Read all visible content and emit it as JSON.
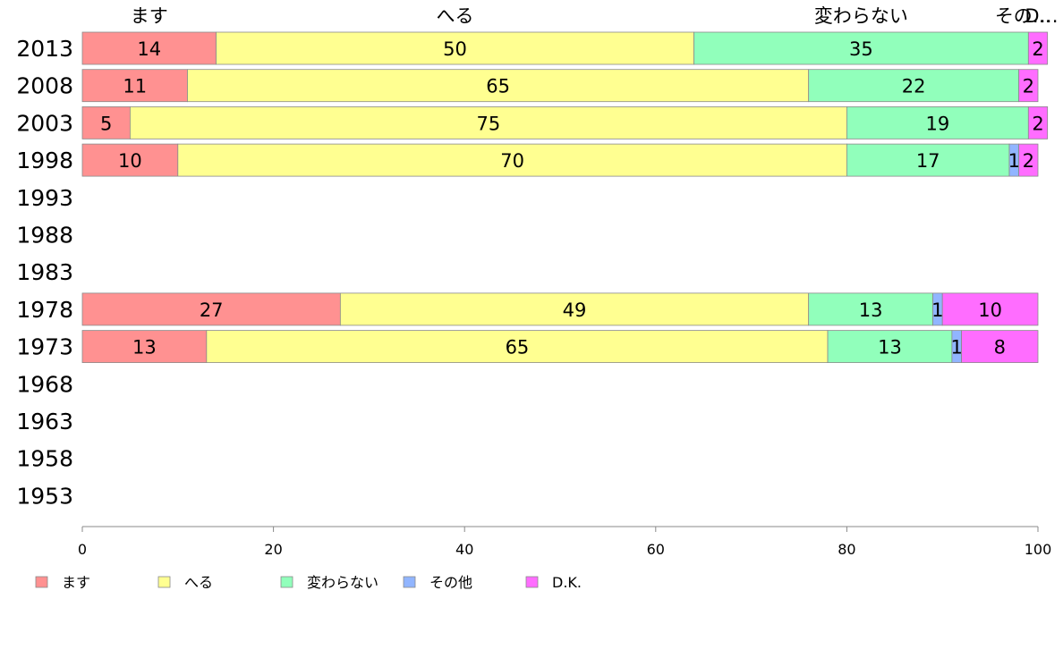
{
  "chart_data": {
    "type": "bar",
    "orientation": "horizontal",
    "stacked": true,
    "categories": [
      "2013",
      "2008",
      "2003",
      "1998",
      "1993",
      "1988",
      "1983",
      "1978",
      "1973",
      "1968",
      "1963",
      "1958",
      "1953"
    ],
    "series": [
      {
        "name": "ます",
        "color": "#ff9191",
        "values": [
          14,
          11,
          5,
          10,
          null,
          null,
          null,
          27,
          13,
          null,
          null,
          null,
          null
        ]
      },
      {
        "name": "へる",
        "color": "#ffff91",
        "values": [
          50,
          65,
          75,
          70,
          null,
          null,
          null,
          49,
          65,
          null,
          null,
          null,
          null
        ]
      },
      {
        "name": "変わらない",
        "color": "#91ffbb",
        "values": [
          35,
          22,
          19,
          17,
          null,
          null,
          null,
          13,
          13,
          null,
          null,
          null,
          null
        ]
      },
      {
        "name": "その他",
        "color": "#91b5ff",
        "values": [
          0,
          0,
          0,
          1,
          null,
          null,
          null,
          1,
          1,
          null,
          null,
          null,
          null
        ]
      },
      {
        "name": "D.K.",
        "color": "#ff6dff",
        "values": [
          2,
          2,
          2,
          2,
          null,
          null,
          null,
          10,
          8,
          null,
          null,
          null,
          null
        ]
      }
    ],
    "top_labels": [
      "ます",
      "へる",
      "変わらない",
      "その…",
      "D…"
    ],
    "xlim": [
      0,
      100
    ],
    "xticks": [
      0,
      20,
      40,
      60,
      80,
      100
    ],
    "legend_position": "bottom-left",
    "grid": false
  }
}
